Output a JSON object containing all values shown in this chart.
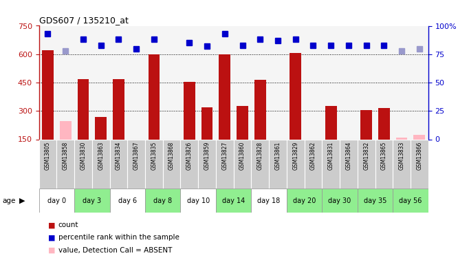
{
  "title": "GDS607 / 135210_at",
  "samples": [
    "GSM13805",
    "GSM13858",
    "GSM13830",
    "GSM13863",
    "GSM13834",
    "GSM13867",
    "GSM13835",
    "GSM13868",
    "GSM13826",
    "GSM13859",
    "GSM13827",
    "GSM13860",
    "GSM13828",
    "GSM13861",
    "GSM13829",
    "GSM13862",
    "GSM13831",
    "GSM13864",
    "GSM13832",
    "GSM13865",
    "GSM13833",
    "GSM13866"
  ],
  "count_values": [
    620,
    null,
    470,
    270,
    470,
    null,
    600,
    null,
    455,
    320,
    600,
    325,
    465,
    null,
    608,
    null,
    325,
    null,
    305,
    315,
    null,
    null
  ],
  "absent_values": [
    null,
    248,
    null,
    null,
    null,
    null,
    null,
    null,
    null,
    null,
    null,
    null,
    null,
    null,
    null,
    null,
    null,
    null,
    null,
    null,
    158,
    173
  ],
  "rank_values": [
    93,
    null,
    88,
    83,
    88,
    80,
    88,
    null,
    85,
    82,
    93,
    83,
    88,
    87,
    88,
    83,
    83,
    83,
    83,
    83,
    null,
    null
  ],
  "absent_rank": [
    null,
    78,
    null,
    null,
    null,
    null,
    null,
    null,
    null,
    null,
    null,
    null,
    null,
    null,
    null,
    null,
    null,
    null,
    null,
    null,
    78,
    80
  ],
  "day_groups": [
    {
      "label": "day 0",
      "indices": [
        0,
        1
      ],
      "color": "#ffffff"
    },
    {
      "label": "day 3",
      "indices": [
        2,
        3
      ],
      "color": "#90ee90"
    },
    {
      "label": "day 6",
      "indices": [
        4,
        5
      ],
      "color": "#ffffff"
    },
    {
      "label": "day 8",
      "indices": [
        6,
        7
      ],
      "color": "#90ee90"
    },
    {
      "label": "day 10",
      "indices": [
        8,
        9
      ],
      "color": "#ffffff"
    },
    {
      "label": "day 14",
      "indices": [
        10,
        11
      ],
      "color": "#90ee90"
    },
    {
      "label": "day 18",
      "indices": [
        12,
        13
      ],
      "color": "#ffffff"
    },
    {
      "label": "day 20",
      "indices": [
        14,
        15
      ],
      "color": "#90ee90"
    },
    {
      "label": "day 30",
      "indices": [
        16,
        17
      ],
      "color": "#90ee90"
    },
    {
      "label": "day 35",
      "indices": [
        18,
        19
      ],
      "color": "#90ee90"
    },
    {
      "label": "day 56",
      "indices": [
        20,
        21
      ],
      "color": "#90ee90"
    }
  ],
  "ylim_left": [
    150,
    750
  ],
  "ylim_right": [
    0,
    100
  ],
  "yticks_left": [
    150,
    300,
    450,
    600,
    750
  ],
  "yticks_right": [
    0,
    25,
    50,
    75,
    100
  ],
  "bar_color": "#bb1111",
  "absent_bar_color": "#ffb6c1",
  "rank_color": "#0000cc",
  "absent_rank_color": "#9999cc",
  "plot_bg": "#f5f5f5",
  "sample_bg": "#cccccc",
  "border_color": "#999999"
}
